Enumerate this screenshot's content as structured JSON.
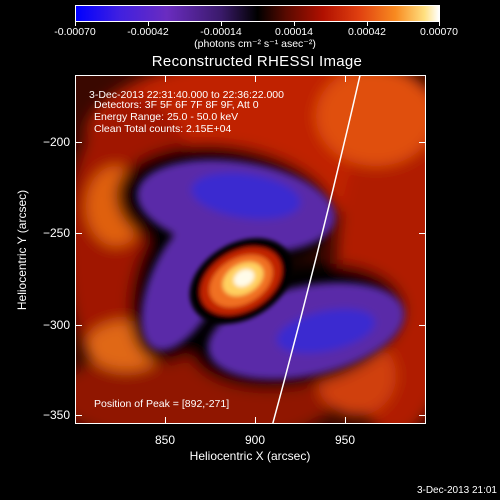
{
  "colorbar": {
    "labels": [
      "-0.00070",
      "-0.00042",
      "-0.00014",
      "0.00014",
      "0.00042",
      "0.00070"
    ],
    "unit": "(photons cm⁻² s⁻¹ asec⁻²)"
  },
  "title": "Reconstructed RHESSI Image",
  "info": {
    "time_range": "3-Dec-2013 22:31:40.000 to 22:36:22.000",
    "detectors": "Detectors: 3F 5F 6F 7F 8F 9F, Att 0",
    "energy": "Energy Range: 25.0 - 50.0 keV",
    "clean": "Clean     Total counts: 2.15E+04",
    "peak": "Position of Peak = [892,-271]"
  },
  "axes": {
    "x_label": "Heliocentric X (arcsec)",
    "y_label": "Heliocentric Y (arcsec)",
    "x_ticks": [
      "850",
      "900",
      "950"
    ],
    "y_ticks": [
      "−200",
      "−250",
      "−300",
      "−350"
    ]
  },
  "stamp": "3-Dec-2013 21:01"
}
